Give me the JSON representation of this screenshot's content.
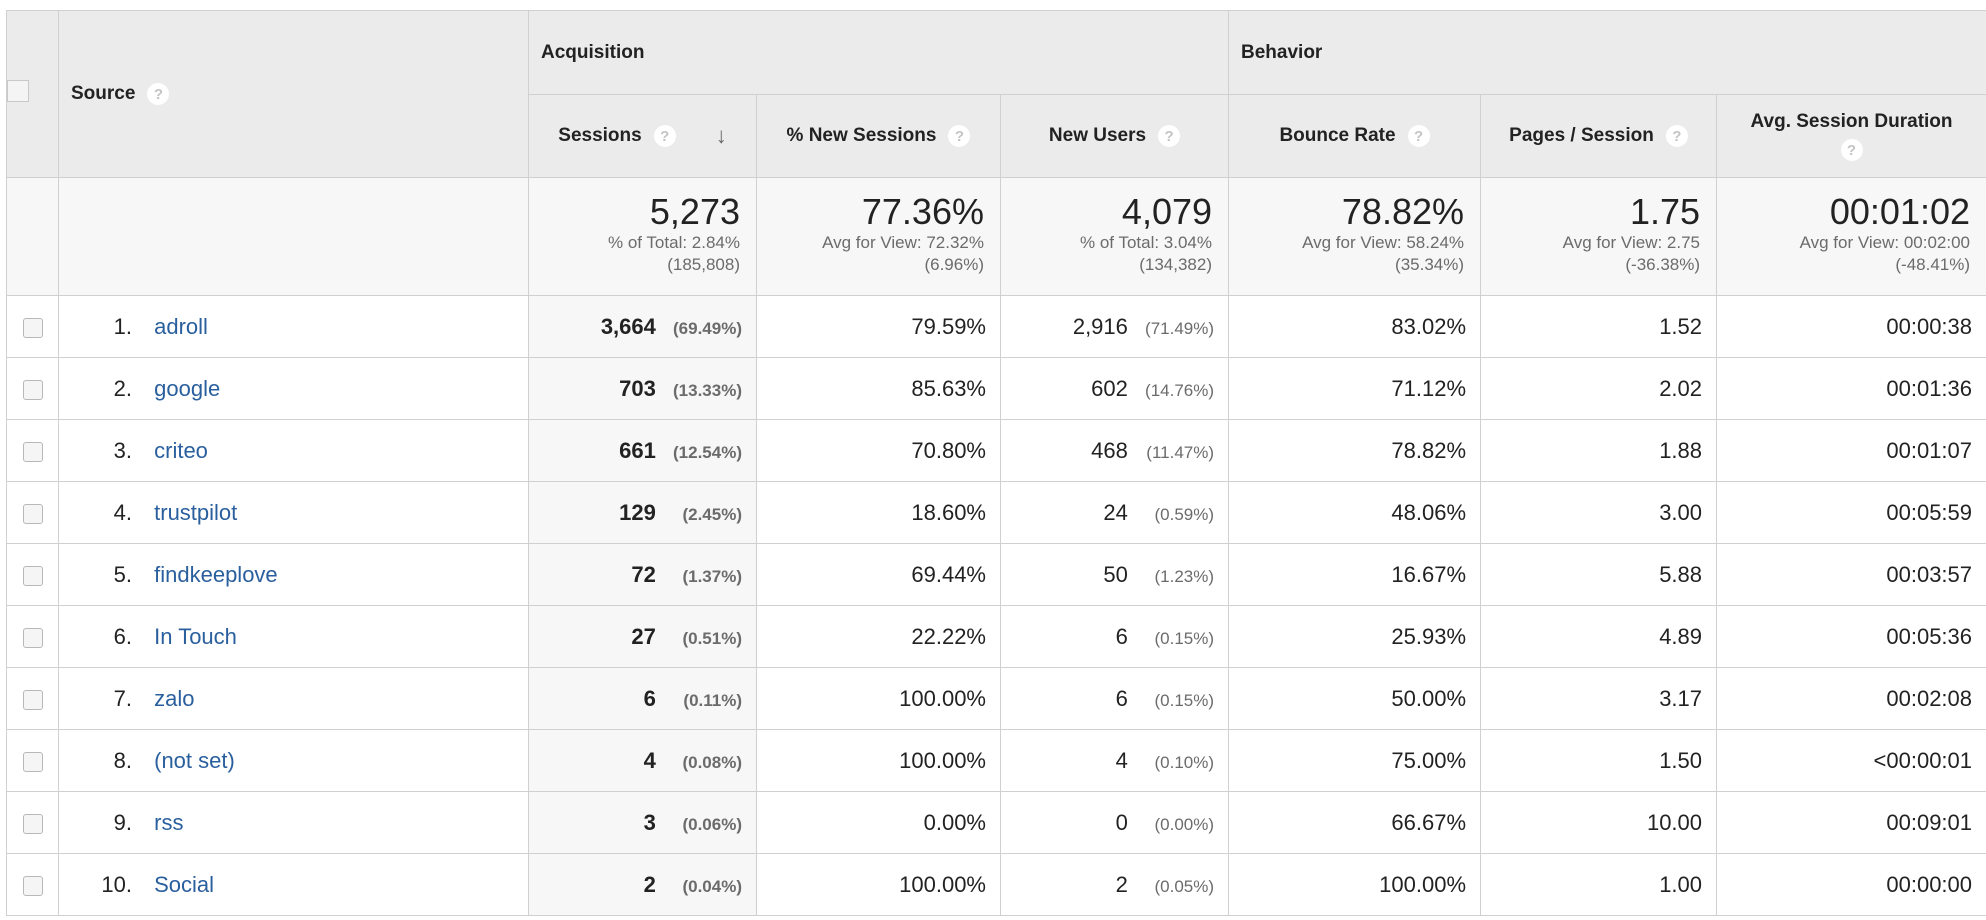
{
  "header": {
    "source_label": "Source",
    "acquisition_label": "Acquisition",
    "behavior_label": "Behavior",
    "help_glyph": "?",
    "sort_glyph": "↓",
    "columns": {
      "sessions": "Sessions",
      "new_sessions_pct": "% New Sessions",
      "new_users": "New Users",
      "bounce_rate": "Bounce Rate",
      "pages_session": "Pages / Session",
      "avg_session_duration": "Avg. Session Duration"
    },
    "sorted_column": "sessions",
    "sort_direction": "descending"
  },
  "totals": {
    "sessions": {
      "value": "5,273",
      "line1": "% of Total: 2.84%",
      "line2": "(185,808)"
    },
    "new_sessions_pct": {
      "value": "77.36%",
      "line1": "Avg for View: 72.32%",
      "line2": "(6.96%)"
    },
    "new_users": {
      "value": "4,079",
      "line1": "% of Total: 3.04%",
      "line2": "(134,382)"
    },
    "bounce_rate": {
      "value": "78.82%",
      "line1": "Avg for View: 58.24%",
      "line2": "(35.34%)"
    },
    "pages_session": {
      "value": "1.75",
      "line1": "Avg for View: 2.75",
      "line2": "(-36.38%)"
    },
    "avg_session_duration": {
      "value": "00:01:02",
      "line1": "Avg for View: 00:02:00",
      "line2": "(-48.41%)"
    }
  },
  "rows": [
    {
      "index": "1.",
      "source": "adroll",
      "sessions": "3,664",
      "sessions_pct": "(69.49%)",
      "new_sessions_pct": "79.59%",
      "new_users": "2,916",
      "new_users_pct": "(71.49%)",
      "bounce_rate": "83.02%",
      "pages_session": "1.52",
      "avg_session_duration": "00:00:38"
    },
    {
      "index": "2.",
      "source": "google",
      "sessions": "703",
      "sessions_pct": "(13.33%)",
      "new_sessions_pct": "85.63%",
      "new_users": "602",
      "new_users_pct": "(14.76%)",
      "bounce_rate": "71.12%",
      "pages_session": "2.02",
      "avg_session_duration": "00:01:36"
    },
    {
      "index": "3.",
      "source": "criteo",
      "sessions": "661",
      "sessions_pct": "(12.54%)",
      "new_sessions_pct": "70.80%",
      "new_users": "468",
      "new_users_pct": "(11.47%)",
      "bounce_rate": "78.82%",
      "pages_session": "1.88",
      "avg_session_duration": "00:01:07"
    },
    {
      "index": "4.",
      "source": "trustpilot",
      "sessions": "129",
      "sessions_pct": "(2.45%)",
      "new_sessions_pct": "18.60%",
      "new_users": "24",
      "new_users_pct": "(0.59%)",
      "bounce_rate": "48.06%",
      "pages_session": "3.00",
      "avg_session_duration": "00:05:59"
    },
    {
      "index": "5.",
      "source": "findkeeplove",
      "sessions": "72",
      "sessions_pct": "(1.37%)",
      "new_sessions_pct": "69.44%",
      "new_users": "50",
      "new_users_pct": "(1.23%)",
      "bounce_rate": "16.67%",
      "pages_session": "5.88",
      "avg_session_duration": "00:03:57"
    },
    {
      "index": "6.",
      "source": "In Touch",
      "sessions": "27",
      "sessions_pct": "(0.51%)",
      "new_sessions_pct": "22.22%",
      "new_users": "6",
      "new_users_pct": "(0.15%)",
      "bounce_rate": "25.93%",
      "pages_session": "4.89",
      "avg_session_duration": "00:05:36"
    },
    {
      "index": "7.",
      "source": "zalo",
      "sessions": "6",
      "sessions_pct": "(0.11%)",
      "new_sessions_pct": "100.00%",
      "new_users": "6",
      "new_users_pct": "(0.15%)",
      "bounce_rate": "50.00%",
      "pages_session": "3.17",
      "avg_session_duration": "00:02:08"
    },
    {
      "index": "8.",
      "source": "(not set)",
      "sessions": "4",
      "sessions_pct": "(0.08%)",
      "new_sessions_pct": "100.00%",
      "new_users": "4",
      "new_users_pct": "(0.10%)",
      "bounce_rate": "75.00%",
      "pages_session": "1.50",
      "avg_session_duration": "<00:00:01"
    },
    {
      "index": "9.",
      "source": "rss",
      "sessions": "3",
      "sessions_pct": "(0.06%)",
      "new_sessions_pct": "0.00%",
      "new_users": "0",
      "new_users_pct": "(0.00%)",
      "bounce_rate": "66.67%",
      "pages_session": "10.00",
      "avg_session_duration": "00:09:01"
    },
    {
      "index": "10.",
      "source": "Social",
      "sessions": "2",
      "sessions_pct": "(0.04%)",
      "new_sessions_pct": "100.00%",
      "new_users": "2",
      "new_users_pct": "(0.05%)",
      "bounce_rate": "100.00%",
      "pages_session": "1.00",
      "avg_session_duration": "00:00:00"
    }
  ]
}
